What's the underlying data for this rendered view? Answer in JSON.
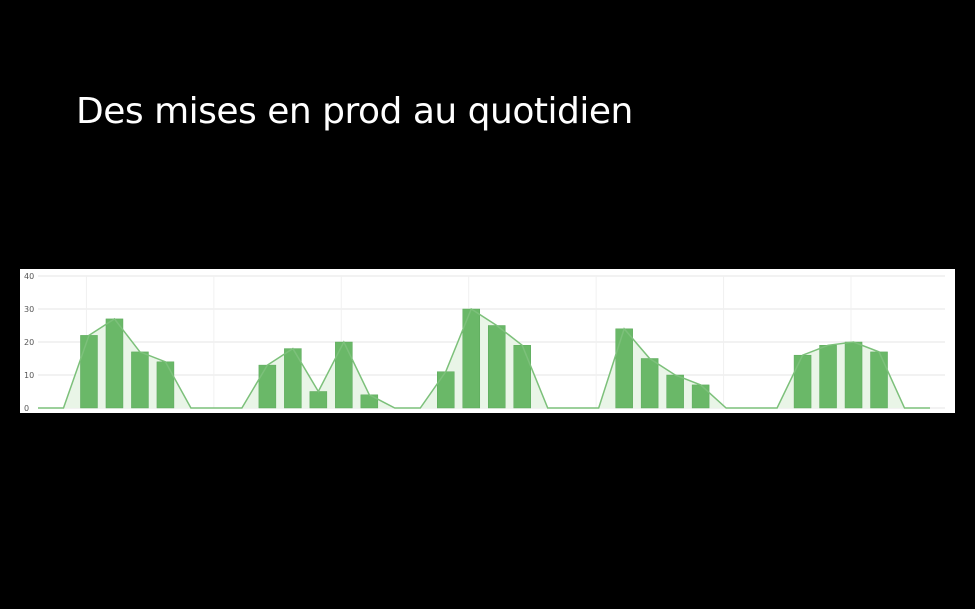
{
  "slide": {
    "title": "Des mises en prod au quotidien"
  },
  "colors": {
    "background": "#000000",
    "title": "#ffffff",
    "panel": "#ffffff",
    "bar": "#6ab868",
    "bar_edge": "#5aa85a",
    "line": "#7cc07a",
    "area": "#e9f5e7",
    "grid": "#e6e6e6",
    "tick": "#555555"
  },
  "chart_data": {
    "type": "bar",
    "title": "",
    "xlabel": "",
    "ylabel": "",
    "ylim": [
      0,
      40
    ],
    "y_ticks": [
      "0",
      "10",
      "20",
      "30",
      "40"
    ],
    "grid": true,
    "legend": "none",
    "overlay": "line-area",
    "values": [
      0,
      0,
      22,
      27,
      17,
      14,
      0,
      0,
      0,
      13,
      18,
      5,
      20,
      4,
      0,
      0,
      11,
      30,
      25,
      19,
      0,
      0,
      0,
      24,
      15,
      10,
      7,
      0,
      0,
      0,
      16,
      19,
      20,
      17,
      0,
      0
    ]
  }
}
